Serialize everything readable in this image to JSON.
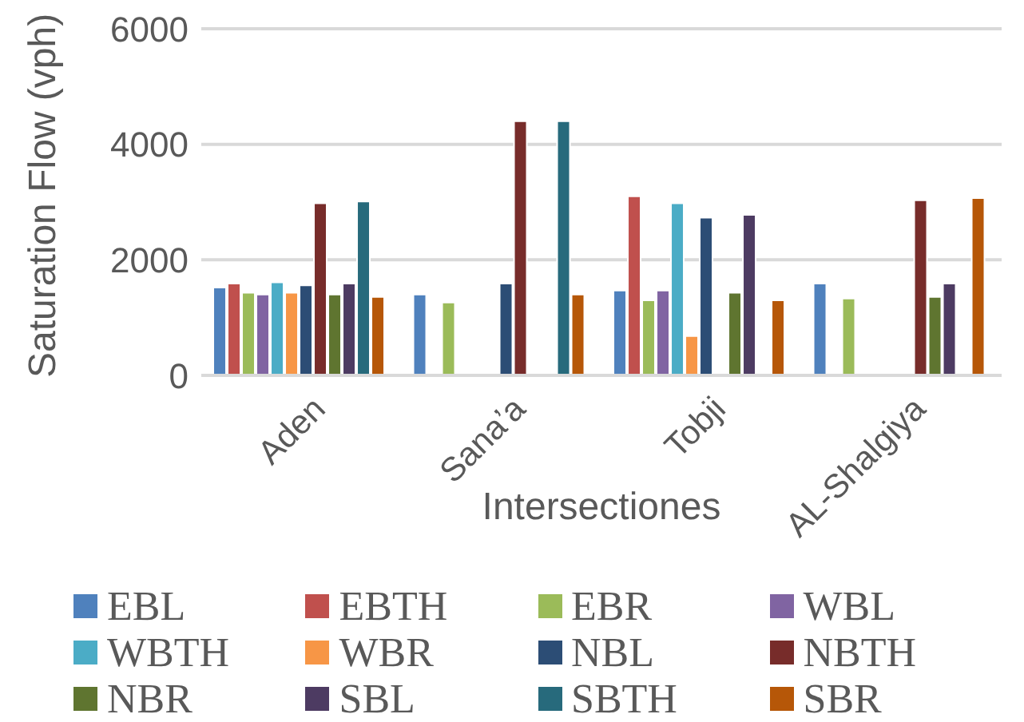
{
  "chart_data": {
    "type": "bar",
    "xlabel": "Intersectiones",
    "ylabel": "Saturation Flow (vph)",
    "categories": [
      "Aden",
      "Sana’a",
      "Tobji",
      "AL-Shalgiya"
    ],
    "series": [
      {
        "name": "EBL",
        "color": "#4f81bd",
        "values": [
          1520,
          1400,
          1470,
          1590
        ]
      },
      {
        "name": "EBTH",
        "color": "#c0504d",
        "values": [
          1590,
          null,
          3100,
          null
        ]
      },
      {
        "name": "EBR",
        "color": "#9bbb59",
        "values": [
          1430,
          1260,
          1300,
          1330
        ]
      },
      {
        "name": "WBL",
        "color": "#8064a2",
        "values": [
          1400,
          null,
          1470,
          null
        ]
      },
      {
        "name": "WBTH",
        "color": "#4bacc6",
        "values": [
          1610,
          null,
          2980,
          null
        ]
      },
      {
        "name": "WBR",
        "color": "#f79646",
        "values": [
          1430,
          null,
          680,
          null
        ]
      },
      {
        "name": "NBL",
        "color": "#2c4d75",
        "values": [
          1560,
          1590,
          2730,
          null
        ]
      },
      {
        "name": "NBTH",
        "color": "#772c2a",
        "values": [
          2980,
          4400,
          null,
          3030
        ]
      },
      {
        "name": "NBR",
        "color": "#5f7530",
        "values": [
          1400,
          null,
          1430,
          1360
        ]
      },
      {
        "name": "SBL",
        "color": "#4d3b62",
        "values": [
          1590,
          null,
          2780,
          1590
        ]
      },
      {
        "name": "SBTH",
        "color": "#276a7c",
        "values": [
          3010,
          4400,
          null,
          null
        ]
      },
      {
        "name": "SBR",
        "color": "#b65708",
        "values": [
          1360,
          1400,
          1300,
          3070
        ]
      }
    ],
    "ylim": [
      0,
      6000
    ],
    "yticks": [
      0,
      2000,
      4000,
      6000
    ],
    "grid": "y",
    "legend": "bottom"
  }
}
